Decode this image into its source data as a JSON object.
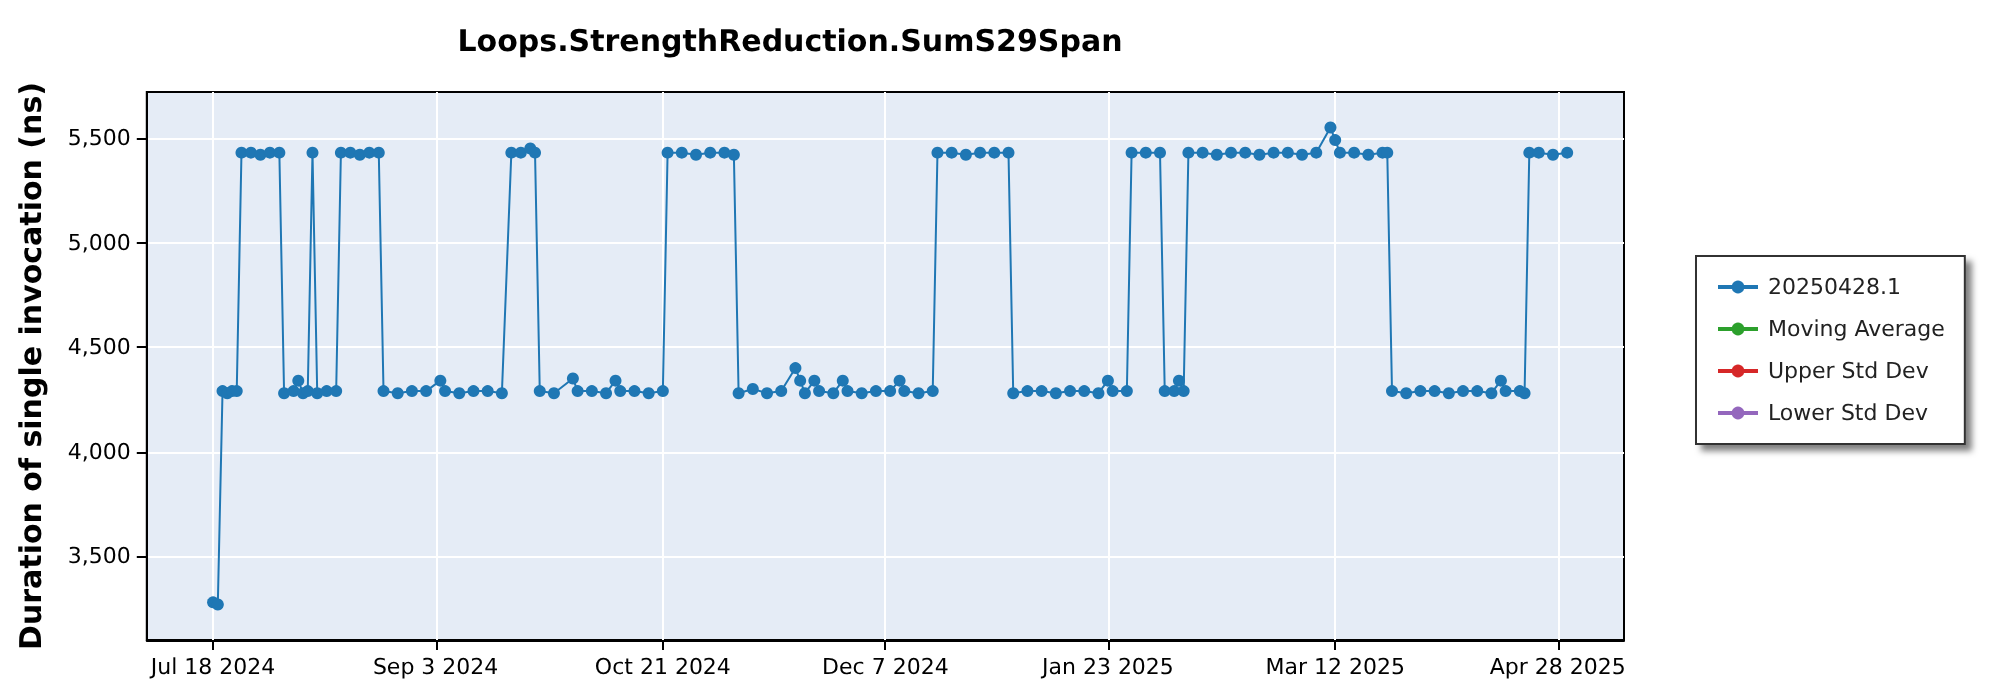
{
  "chart_data": {
    "type": "line",
    "title": "Loops.StrengthReduction.SumS29Span",
    "ylabel": "Duration of single invocation (ns)",
    "xlim": [
      "2024-07-04",
      "2025-05-12"
    ],
    "xticks": [
      {
        "value": "2024-07-18",
        "label": "Jul 18 2024"
      },
      {
        "value": "2024-09-03",
        "label": "Sep 3 2024"
      },
      {
        "value": "2024-10-21",
        "label": "Oct 21 2024"
      },
      {
        "value": "2024-12-07",
        "label": "Dec 7 2024"
      },
      {
        "value": "2025-01-23",
        "label": "Jan 23 2025"
      },
      {
        "value": "2025-03-12",
        "label": "Mar 12 2025"
      },
      {
        "value": "2025-04-28",
        "label": "Apr 28 2025"
      }
    ],
    "ylim": [
      3100,
      5720
    ],
    "yticks": [
      {
        "value": 3500,
        "label": "3,500"
      },
      {
        "value": 4000,
        "label": "4,000"
      },
      {
        "value": 4500,
        "label": "4,500"
      },
      {
        "value": 5000,
        "label": "5,000"
      },
      {
        "value": 5500,
        "label": "5,500"
      }
    ],
    "grid": true,
    "legend": "right",
    "marker": "circle",
    "line_style": "solid",
    "series": [
      {
        "name": "20250428.1",
        "color": "#1f77b4",
        "x": [
          "2024-07-18",
          "2024-07-19",
          "2024-07-20",
          "2024-07-21",
          "2024-07-22",
          "2024-07-23",
          "2024-07-24",
          "2024-07-26",
          "2024-07-28",
          "2024-07-30",
          "2024-08-01",
          "2024-08-02",
          "2024-08-04",
          "2024-08-05",
          "2024-08-06",
          "2024-08-07",
          "2024-08-08",
          "2024-08-09",
          "2024-08-11",
          "2024-08-13",
          "2024-08-14",
          "2024-08-16",
          "2024-08-18",
          "2024-08-20",
          "2024-08-22",
          "2024-08-23",
          "2024-08-26",
          "2024-08-29",
          "2024-09-01",
          "2024-09-04",
          "2024-09-05",
          "2024-09-08",
          "2024-09-11",
          "2024-09-14",
          "2024-09-17",
          "2024-09-19",
          "2024-09-21",
          "2024-09-23",
          "2024-09-24",
          "2024-09-25",
          "2024-09-28",
          "2024-10-02",
          "2024-10-03",
          "2024-10-06",
          "2024-10-09",
          "2024-10-11",
          "2024-10-12",
          "2024-10-15",
          "2024-10-18",
          "2024-10-21",
          "2024-10-22",
          "2024-10-25",
          "2024-10-28",
          "2024-10-31",
          "2024-11-03",
          "2024-11-05",
          "2024-11-06",
          "2024-11-09",
          "2024-11-12",
          "2024-11-15",
          "2024-11-18",
          "2024-11-19",
          "2024-11-20",
          "2024-11-22",
          "2024-11-23",
          "2024-11-26",
          "2024-11-28",
          "2024-11-29",
          "2024-12-02",
          "2024-12-05",
          "2024-12-08",
          "2024-12-10",
          "2024-12-11",
          "2024-12-14",
          "2024-12-17",
          "2024-12-18",
          "2024-12-21",
          "2024-12-24",
          "2024-12-27",
          "2024-12-30",
          "2025-01-02",
          "2025-01-03",
          "2025-01-06",
          "2025-01-09",
          "2025-01-12",
          "2025-01-15",
          "2025-01-18",
          "2025-01-21",
          "2025-01-23",
          "2025-01-24",
          "2025-01-27",
          "2025-01-28",
          "2025-01-31",
          "2025-02-03",
          "2025-02-04",
          "2025-02-06",
          "2025-02-07",
          "2025-02-08",
          "2025-02-09",
          "2025-02-12",
          "2025-02-15",
          "2025-02-18",
          "2025-02-21",
          "2025-02-24",
          "2025-02-27",
          "2025-03-02",
          "2025-03-05",
          "2025-03-08",
          "2025-03-11",
          "2025-03-12",
          "2025-03-13",
          "2025-03-16",
          "2025-03-19",
          "2025-03-22",
          "2025-03-23",
          "2025-03-24",
          "2025-03-27",
          "2025-03-30",
          "2025-04-02",
          "2025-04-05",
          "2025-04-08",
          "2025-04-11",
          "2025-04-14",
          "2025-04-16",
          "2025-04-17",
          "2025-04-20",
          "2025-04-21",
          "2025-04-22",
          "2025-04-24",
          "2025-04-27",
          "2025-04-30"
        ],
        "values": [
          3280,
          3270,
          4290,
          4280,
          4290,
          4290,
          5430,
          5430,
          5420,
          5430,
          5430,
          4280,
          4290,
          4340,
          4280,
          4290,
          5430,
          4280,
          4290,
          4290,
          5430,
          5430,
          5420,
          5430,
          5430,
          4290,
          4280,
          4290,
          4290,
          4340,
          4290,
          4280,
          4290,
          4290,
          4280,
          5430,
          5430,
          5450,
          5430,
          4290,
          4280,
          4350,
          4290,
          4290,
          4280,
          4340,
          4290,
          4290,
          4280,
          4290,
          5430,
          5430,
          5420,
          5430,
          5430,
          5420,
          4280,
          4300,
          4280,
          4290,
          4400,
          4340,
          4280,
          4340,
          4290,
          4280,
          4340,
          4290,
          4280,
          4290,
          4290,
          4340,
          4290,
          4280,
          4290,
          5430,
          5430,
          5420,
          5430,
          5430,
          5430,
          4280,
          4290,
          4290,
          4280,
          4290,
          4290,
          4280,
          4340,
          4290,
          4290,
          5430,
          5430,
          5430,
          4290,
          4290,
          4340,
          4290,
          5430,
          5430,
          5420,
          5430,
          5430,
          5420,
          5430,
          5430,
          5420,
          5430,
          5550,
          5490,
          5430,
          5430,
          5420,
          5430,
          5430,
          4290,
          4280,
          4290,
          4290,
          4280,
          4290,
          4290,
          4280,
          4340,
          4290,
          4290,
          4280,
          5430,
          5430,
          5420,
          5430
        ]
      },
      {
        "name": "Moving Average",
        "color": "#2ca02c"
      },
      {
        "name": "Upper Std Dev",
        "color": "#d62728"
      },
      {
        "name": "Lower Std Dev",
        "color": "#9467bd"
      }
    ]
  }
}
